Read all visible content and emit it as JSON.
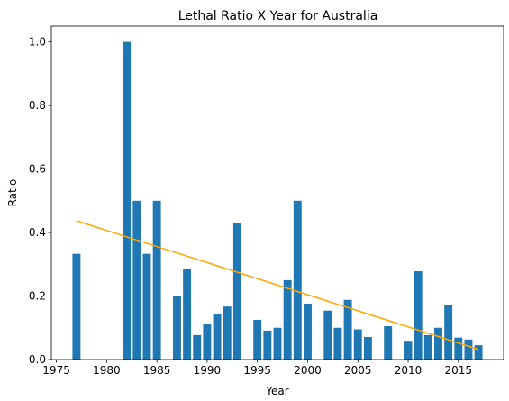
{
  "chart_data": {
    "type": "bar",
    "title": "Lethal Ratio X Year for Australia",
    "xlabel": "Year",
    "ylabel": "Ratio",
    "xlim": [
      1974.5,
      2019.5
    ],
    "ylim": [
      0,
      1.05
    ],
    "xticks": [
      1975,
      1980,
      1985,
      1990,
      1995,
      2000,
      2005,
      2010,
      2015
    ],
    "yticks": [
      0.0,
      0.2,
      0.4,
      0.6,
      0.8,
      1.0
    ],
    "grid": false,
    "bar_color": "#1f77b4",
    "trend_color": "#ffa500",
    "x": [
      1977,
      1982,
      1983,
      1984,
      1985,
      1987,
      1988,
      1989,
      1990,
      1991,
      1992,
      1993,
      1995,
      1996,
      1997,
      1998,
      1999,
      2000,
      2002,
      2003,
      2004,
      2005,
      2006,
      2008,
      2010,
      2011,
      2012,
      2013,
      2014,
      2015,
      2016,
      2017
    ],
    "values": [
      0.333,
      1.0,
      0.5,
      0.333,
      0.5,
      0.2,
      0.286,
      0.077,
      0.111,
      0.143,
      0.167,
      0.429,
      0.125,
      0.091,
      0.1,
      0.25,
      0.5,
      0.176,
      0.154,
      0.1,
      0.188,
      0.095,
      0.071,
      0.105,
      0.059,
      0.278,
      0.077,
      0.1,
      0.172,
      0.069,
      0.063,
      0.045
    ],
    "trend_line": {
      "x": [
        1977,
        2017
      ],
      "y": [
        0.437,
        0.032
      ]
    }
  }
}
